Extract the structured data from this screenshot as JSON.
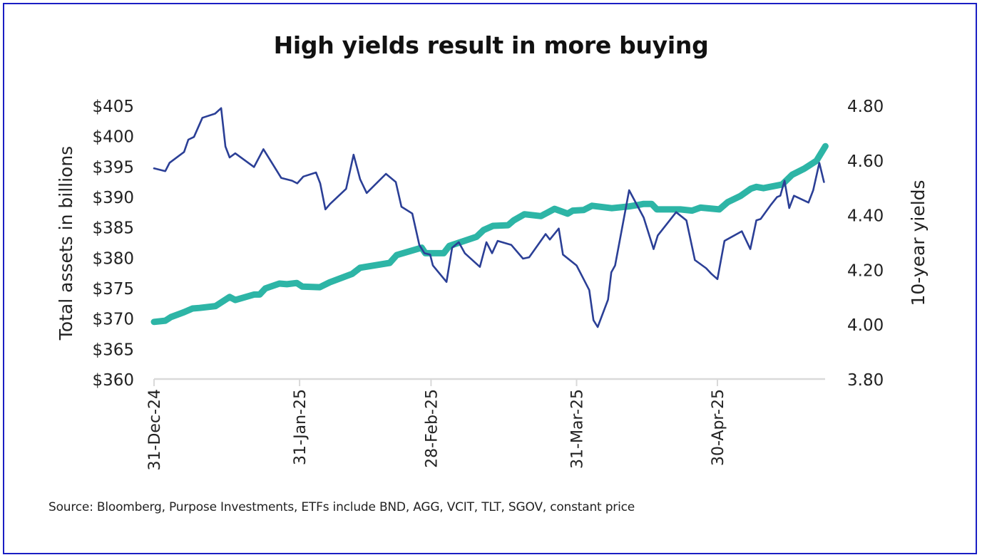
{
  "chart_data": {
    "type": "line",
    "title": "High yields result in more buying",
    "source_note": "Source: Bloomberg, Purpose Investments, ETFs include BND, AGG, VCIT, TLT, SGOV, constant price",
    "x_axis": {
      "label": "",
      "unit": "days since 31-Dec-24",
      "range": [
        0,
        143
      ],
      "ticks": [
        {
          "value": 0,
          "label": "31-Dec-24"
        },
        {
          "value": 31,
          "label": "31-Jan-25"
        },
        {
          "value": 59,
          "label": "28-Feb-25"
        },
        {
          "value": 90,
          "label": "31-Mar-25"
        },
        {
          "value": 120,
          "label": "30-Apr-25"
        }
      ]
    },
    "y_left": {
      "label": "Total assets in billions",
      "range": [
        360,
        405
      ],
      "ticks": [
        "$405",
        "$400",
        "$395",
        "$390",
        "$385",
        "$380",
        "$375",
        "$370",
        "$365",
        "$360"
      ],
      "tick_values": [
        405,
        400,
        395,
        390,
        385,
        380,
        375,
        370,
        365,
        360
      ]
    },
    "y_right": {
      "label": "10-year yields",
      "range": [
        3.8,
        4.8
      ],
      "ticks": [
        "4.80",
        "4.60",
        "4.40",
        "4.20",
        "4.00",
        "3.80"
      ],
      "tick_values": [
        4.8,
        4.6,
        4.4,
        4.2,
        4.0,
        3.8
      ]
    },
    "grid": false,
    "legend": "none",
    "series": [
      {
        "name": "Total assets in billions",
        "axis": "left",
        "color": "#2db5a6",
        "points": [
          [
            0,
            369.4
          ],
          [
            2.4,
            369.6
          ],
          [
            3.6,
            370.2
          ],
          [
            6.4,
            371.0
          ],
          [
            8.2,
            371.6
          ],
          [
            9.7,
            371.7
          ],
          [
            13.1,
            372.0
          ],
          [
            16.1,
            373.5
          ],
          [
            17.3,
            373.0
          ],
          [
            21.3,
            373.9
          ],
          [
            22.5,
            373.9
          ],
          [
            23.7,
            374.9
          ],
          [
            26.7,
            375.7
          ],
          [
            28.3,
            375.6
          ],
          [
            30.4,
            375.8
          ],
          [
            31.6,
            375.2
          ],
          [
            35.3,
            375.1
          ],
          [
            37.4,
            375.9
          ],
          [
            42.2,
            377.3
          ],
          [
            43.9,
            378.3
          ],
          [
            50.2,
            379.1
          ],
          [
            51.7,
            380.4
          ],
          [
            57.0,
            381.6
          ],
          [
            57.8,
            380.7
          ],
          [
            61.7,
            380.7
          ],
          [
            62.9,
            381.9
          ],
          [
            68.7,
            383.4
          ],
          [
            70.2,
            384.5
          ],
          [
            72.2,
            385.2
          ],
          [
            75.4,
            385.3
          ],
          [
            76.6,
            386.1
          ],
          [
            78.9,
            387.1
          ],
          [
            82.4,
            386.8
          ],
          [
            85.3,
            388.0
          ],
          [
            88.1,
            387.2
          ],
          [
            89.2,
            387.7
          ],
          [
            91.5,
            387.8
          ],
          [
            93.3,
            388.5
          ],
          [
            97.5,
            388.1
          ],
          [
            101.2,
            388.4
          ],
          [
            102.9,
            388.6
          ],
          [
            104.3,
            388.8
          ],
          [
            106.0,
            388.8
          ],
          [
            107.1,
            387.9
          ],
          [
            110.3,
            387.9
          ],
          [
            112.1,
            387.9
          ],
          [
            114.6,
            387.7
          ],
          [
            116.4,
            388.2
          ],
          [
            120.4,
            387.9
          ],
          [
            122.2,
            389.1
          ],
          [
            124.9,
            390.1
          ],
          [
            127.1,
            391.3
          ],
          [
            128.3,
            391.6
          ],
          [
            129.8,
            391.4
          ],
          [
            133.8,
            392.0
          ],
          [
            135.9,
            393.6
          ],
          [
            138.5,
            394.6
          ],
          [
            141.1,
            395.9
          ],
          [
            143.0,
            398.3
          ]
        ]
      },
      {
        "name": "10-year yields",
        "axis": "right",
        "color": "#2b3f96",
        "points": [
          [
            0,
            4.57
          ],
          [
            2.4,
            4.56
          ],
          [
            3.3,
            4.59
          ],
          [
            6.4,
            4.63
          ],
          [
            7.3,
            4.675
          ],
          [
            8.5,
            4.685
          ],
          [
            10.3,
            4.755
          ],
          [
            13.0,
            4.77
          ],
          [
            14.3,
            4.79
          ],
          [
            15.2,
            4.65
          ],
          [
            16.1,
            4.61
          ],
          [
            17.3,
            4.625
          ],
          [
            21.3,
            4.575
          ],
          [
            23.3,
            4.64
          ],
          [
            27.1,
            4.535
          ],
          [
            29.4,
            4.525
          ],
          [
            30.5,
            4.515
          ],
          [
            31.8,
            4.54
          ],
          [
            34.5,
            4.555
          ],
          [
            35.4,
            4.515
          ],
          [
            36.5,
            4.42
          ],
          [
            37.5,
            4.44
          ],
          [
            40.9,
            4.495
          ],
          [
            42.5,
            4.62
          ],
          [
            43.9,
            4.53
          ],
          [
            45.3,
            4.48
          ],
          [
            49.4,
            4.55
          ],
          [
            51.5,
            4.52
          ],
          [
            52.7,
            4.43
          ],
          [
            55.0,
            4.405
          ],
          [
            56.5,
            4.29
          ],
          [
            57.6,
            4.26
          ],
          [
            58.8,
            4.255
          ],
          [
            59.4,
            4.215
          ],
          [
            62.3,
            4.155
          ],
          [
            63.5,
            4.28
          ],
          [
            64.9,
            4.3
          ],
          [
            66.2,
            4.26
          ],
          [
            69.4,
            4.21
          ],
          [
            70.8,
            4.3
          ],
          [
            72.0,
            4.26
          ],
          [
            73.2,
            4.305
          ],
          [
            76.1,
            4.29
          ],
          [
            78.6,
            4.24
          ],
          [
            79.9,
            4.245
          ],
          [
            83.4,
            4.33
          ],
          [
            84.3,
            4.31
          ],
          [
            86.2,
            4.35
          ],
          [
            87.1,
            4.255
          ],
          [
            90.0,
            4.215
          ],
          [
            91.5,
            4.165
          ],
          [
            92.7,
            4.125
          ],
          [
            93.6,
            4.015
          ],
          [
            94.5,
            3.99
          ],
          [
            96.7,
            4.09
          ],
          [
            97.4,
            4.19
          ],
          [
            98.2,
            4.215
          ],
          [
            101.2,
            4.49
          ],
          [
            104.3,
            4.39
          ],
          [
            106.4,
            4.275
          ],
          [
            107.3,
            4.325
          ],
          [
            111.2,
            4.41
          ],
          [
            113.4,
            4.38
          ],
          [
            115.2,
            4.235
          ],
          [
            117.6,
            4.205
          ],
          [
            118.7,
            4.185
          ],
          [
            120.0,
            4.165
          ],
          [
            121.5,
            4.305
          ],
          [
            125.2,
            4.34
          ],
          [
            127.0,
            4.275
          ],
          [
            128.3,
            4.38
          ],
          [
            129.2,
            4.385
          ],
          [
            131.3,
            4.435
          ],
          [
            132.7,
            4.465
          ],
          [
            133.4,
            4.47
          ],
          [
            134.3,
            4.525
          ],
          [
            135.3,
            4.425
          ],
          [
            136.3,
            4.47
          ],
          [
            139.4,
            4.445
          ],
          [
            140.4,
            4.49
          ],
          [
            141.7,
            4.59
          ],
          [
            142.7,
            4.52
          ]
        ]
      }
    ]
  }
}
